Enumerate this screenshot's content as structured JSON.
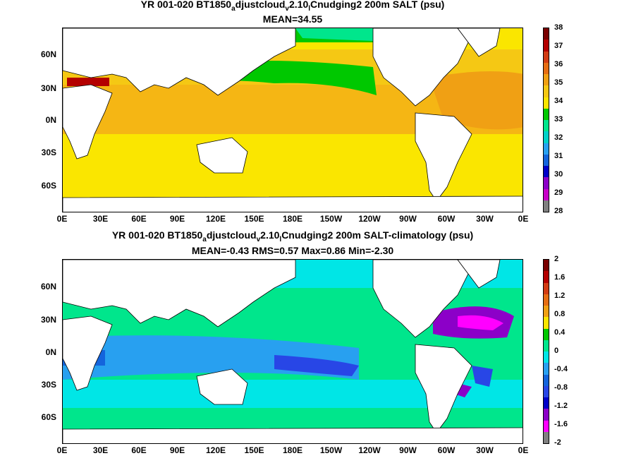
{
  "top": {
    "title_a": "YR 001-020 BT1850",
    "title_a_sub": "a",
    "title_b": "djustcloud",
    "title_b_sub": "v",
    "title_c": "2.10",
    "title_c_sub": "l",
    "title_d": "Cnudging2 200m SALT (psu)",
    "subtitle": "MEAN=34.55",
    "colorbar_labels": [
      "38",
      "37",
      "36",
      "35",
      "34",
      "33",
      "32",
      "31",
      "30",
      "29",
      "28"
    ],
    "colors": [
      "#7a0000",
      "#b40000",
      "#d23c14",
      "#e66e14",
      "#f0a014",
      "#f5c814",
      "#fae600",
      "#00c800",
      "#00e68c",
      "#00d2c8",
      "#28a0f0",
      "#1464dc",
      "#0000c8",
      "#8c00c8",
      "#c800c8",
      "#808080"
    ]
  },
  "bottom": {
    "title_a": "YR 001-020 BT1850",
    "title_a_sub": "a",
    "title_b": "djustcloud",
    "title_b_sub": "v",
    "title_c": "2.10",
    "title_c_sub": "l",
    "title_d": "Cnudging2 200m SALT-climatology (psu)",
    "subtitle": "MEAN=-0.43   RMS=0.57   Max=0.86   Min=-2.30",
    "colorbar_labels": [
      "2",
      "1.6",
      "1.2",
      "0.8",
      "0.4",
      "0",
      "-0.4",
      "-0.8",
      "-1.2",
      "-1.6",
      "-2"
    ],
    "colors": [
      "#7a0000",
      "#b40000",
      "#d23c14",
      "#e66e14",
      "#f0a014",
      "#fae600",
      "#00c800",
      "#00e68c",
      "#00e6e6",
      "#28a0f0",
      "#1464dc",
      "#2846e6",
      "#0000c8",
      "#8c00c8",
      "#ff00ff",
      "#808080"
    ]
  },
  "y_ticks": [
    "60N",
    "30N",
    "0N",
    "30S",
    "60S"
  ],
  "x_ticks": [
    "0E",
    "30E",
    "60E",
    "90E",
    "120E",
    "150E",
    "180E",
    "150W",
    "120W",
    "90W",
    "60W",
    "30W",
    "0E"
  ]
}
